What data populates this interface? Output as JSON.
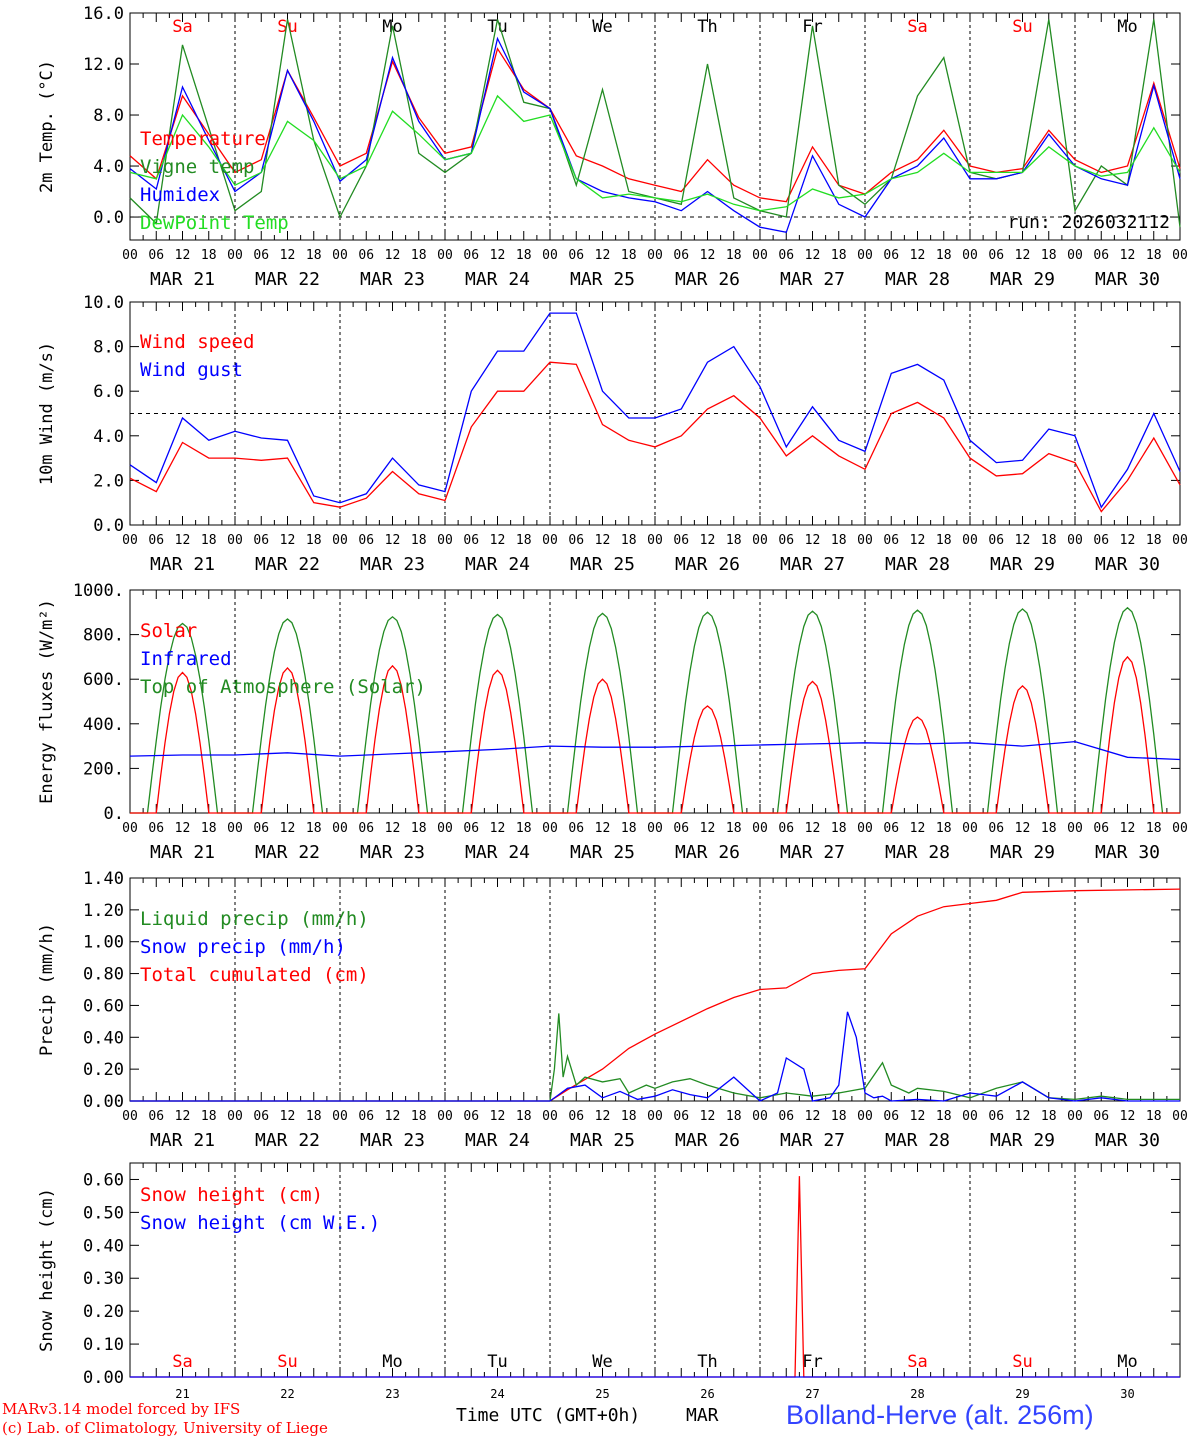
{
  "axis": {
    "hour_ticks": [
      "00",
      "06",
      "12",
      "18"
    ],
    "final_hour": "00",
    "dates": [
      "MAR 21",
      "MAR 22",
      "MAR 23",
      "MAR 24",
      "MAR 25",
      "MAR 26",
      "MAR 27",
      "MAR 28",
      "MAR 29",
      "MAR 30"
    ],
    "weekdays": [
      "Sa",
      "Su",
      "Mo",
      "Tu",
      "We",
      "Th",
      "Fr",
      "Sa",
      "Su",
      "Mo"
    ],
    "weekend_flags": [
      true,
      true,
      false,
      false,
      false,
      false,
      false,
      true,
      true,
      false
    ],
    "bottom_day_numbers": [
      "21",
      "22",
      "23",
      "24",
      "25",
      "26",
      "27",
      "28",
      "29",
      "30"
    ],
    "xlabel": "Time UTC (GMT+0h)",
    "month": "MAR"
  },
  "colors": {
    "red": "#ff0000",
    "green": "#228b22",
    "blue": "#0000ff",
    "lightgreen": "#22dd22",
    "weekend": "#ff0000",
    "weekday": "#000000"
  },
  "footer": {
    "model": "MARv3.14 model forced by IFS",
    "copyright": "(c) Lab. of Climatology, University of Liege",
    "station": "Bolland-Herve (alt. 256m)"
  },
  "chart_data": [
    {
      "type": "line",
      "title": "2m Temp.",
      "ylabel": "2m Temp. (°C)",
      "ylim": [
        -1.8,
        16.0
      ],
      "yticks": [
        "16.0",
        "12.0",
        "8.0",
        "4.0",
        "0.0"
      ],
      "ytick_values": [
        16,
        12,
        8,
        4,
        0
      ],
      "run_label": "run: 2026032112",
      "legend": [
        {
          "name": "Temperature",
          "color": "red"
        },
        {
          "name": "Vigne temp",
          "color": "green"
        },
        {
          "name": "Humidex",
          "color": "blue"
        },
        {
          "name": "DewPoint Temp",
          "color": "lightgreen"
        }
      ],
      "x_hours": [
        0,
        6,
        12,
        18,
        24,
        30,
        36,
        42,
        48,
        54,
        60,
        66,
        72,
        78,
        84,
        90,
        96,
        102,
        108,
        114,
        120,
        126,
        132,
        138,
        144,
        150,
        156,
        162,
        168,
        174,
        180,
        186,
        192,
        198,
        204,
        210,
        216,
        222,
        228,
        234,
        240
      ],
      "series": [
        {
          "name": "Temperature",
          "color": "red",
          "values": [
            4.8,
            3.0,
            9.5,
            6.5,
            3.5,
            4.5,
            11.5,
            7.8,
            4.0,
            5.0,
            12.2,
            7.8,
            5.0,
            5.5,
            13.2,
            10.0,
            8.5,
            4.8,
            4.0,
            3.0,
            2.5,
            2.0,
            4.5,
            2.5,
            1.5,
            1.2,
            5.5,
            2.5,
            1.8,
            3.5,
            4.5,
            6.8,
            4.0,
            3.5,
            3.8,
            6.8,
            4.5,
            3.5,
            4.0,
            10.5,
            3.8
          ]
        },
        {
          "name": "Vigne temp",
          "color": "green",
          "values": [
            1.5,
            -0.5,
            13.5,
            7.0,
            0.5,
            2.0,
            15.5,
            6.0,
            0.0,
            4.0,
            15.0,
            5.0,
            3.5,
            5.0,
            15.5,
            9.0,
            8.5,
            2.5,
            10.0,
            2.0,
            1.5,
            1.0,
            12.0,
            1.5,
            0.5,
            0.0,
            15.0,
            2.5,
            1.0,
            3.0,
            9.5,
            12.5,
            3.5,
            3.0,
            3.5,
            15.5,
            0.5,
            4.0,
            2.5,
            15.5,
            -0.8
          ]
        },
        {
          "name": "Humidex",
          "color": "blue",
          "values": [
            3.8,
            2.2,
            10.2,
            6.0,
            2.0,
            3.5,
            11.5,
            7.5,
            2.8,
            4.5,
            12.5,
            7.5,
            4.5,
            5.0,
            14.0,
            9.8,
            8.5,
            3.0,
            2.0,
            1.5,
            1.2,
            0.5,
            2.0,
            0.5,
            -0.8,
            -1.2,
            4.8,
            1.0,
            0.0,
            3.0,
            4.0,
            6.2,
            3.0,
            3.0,
            3.5,
            6.5,
            4.0,
            3.0,
            2.5,
            10.3,
            3.0
          ]
        },
        {
          "name": "DewPoint Temp",
          "color": "lightgreen",
          "values": [
            3.5,
            3.0,
            8.0,
            5.5,
            2.5,
            3.5,
            7.5,
            6.0,
            3.0,
            4.0,
            8.3,
            6.5,
            4.5,
            5.0,
            9.5,
            7.5,
            8.0,
            3.0,
            1.5,
            1.8,
            1.5,
            1.2,
            1.8,
            1.0,
            0.5,
            0.8,
            2.2,
            1.5,
            1.8,
            3.0,
            3.5,
            5.0,
            3.5,
            3.5,
            3.5,
            5.5,
            4.0,
            3.2,
            3.5,
            7.0,
            3.5
          ]
        }
      ]
    },
    {
      "type": "line",
      "title": "10m Wind",
      "ylabel": "10m Wind (m/s)",
      "ylim": [
        0,
        10
      ],
      "yticks": [
        "10.0",
        "8.0",
        "6.0",
        "4.0",
        "2.0",
        "0.0"
      ],
      "ytick_values": [
        10,
        8,
        6,
        4,
        2,
        0
      ],
      "reference_line": 5,
      "legend": [
        {
          "name": "Wind speed",
          "color": "red"
        },
        {
          "name": "Wind gust",
          "color": "blue"
        }
      ],
      "x_hours": [
        0,
        6,
        12,
        18,
        24,
        30,
        36,
        42,
        48,
        54,
        60,
        66,
        72,
        78,
        84,
        90,
        96,
        102,
        108,
        114,
        120,
        126,
        132,
        138,
        144,
        150,
        156,
        162,
        168,
        174,
        180,
        186,
        192,
        198,
        204,
        210,
        216,
        222,
        228,
        234,
        240
      ],
      "series": [
        {
          "name": "Wind speed",
          "color": "red",
          "values": [
            2.1,
            1.5,
            3.7,
            3.0,
            3.0,
            2.9,
            3.0,
            1.0,
            0.8,
            1.2,
            2.4,
            1.4,
            1.1,
            4.4,
            6.0,
            6.0,
            7.3,
            7.2,
            4.5,
            3.8,
            3.5,
            4.0,
            5.2,
            5.8,
            4.8,
            3.1,
            4.0,
            3.1,
            2.5,
            5.0,
            5.5,
            4.8,
            3.0,
            2.2,
            2.3,
            3.2,
            2.8,
            0.6,
            2.0,
            3.9,
            1.8
          ]
        },
        {
          "name": "Wind gust",
          "color": "blue",
          "values": [
            2.7,
            1.9,
            4.8,
            3.8,
            4.2,
            3.9,
            3.8,
            1.3,
            1.0,
            1.4,
            3.0,
            1.8,
            1.5,
            6.0,
            7.8,
            7.8,
            9.5,
            9.5,
            6.0,
            4.8,
            4.8,
            5.2,
            7.3,
            8.0,
            6.2,
            3.5,
            5.3,
            3.8,
            3.3,
            6.8,
            7.2,
            6.5,
            3.8,
            2.8,
            2.9,
            4.3,
            4.0,
            0.8,
            2.5,
            5.0,
            2.4
          ]
        }
      ]
    },
    {
      "type": "line",
      "title": "Energy fluxes",
      "ylabel": "Energy fluxes (W/m²)",
      "ylim": [
        0,
        1000
      ],
      "yticks": [
        "1000.",
        "800.",
        "600.",
        "400.",
        "200.",
        "0."
      ],
      "ytick_values": [
        1000,
        800,
        600,
        400,
        200,
        0
      ],
      "legend": [
        {
          "name": "Solar",
          "color": "red"
        },
        {
          "name": "Infrared",
          "color": "blue"
        },
        {
          "name": "Top of Atmosphere (Solar)",
          "color": "green"
        }
      ],
      "daily_peaks": {
        "Top of Atmosphere (Solar)": [
          850,
          870,
          880,
          890,
          895,
          900,
          905,
          910,
          915,
          920
        ],
        "Solar": [
          630,
          650,
          660,
          640,
          600,
          480,
          590,
          430,
          570,
          700
        ]
      },
      "infrared_hours": [
        0,
        12,
        24,
        36,
        48,
        60,
        72,
        84,
        96,
        108,
        120,
        132,
        144,
        156,
        168,
        180,
        192,
        204,
        216,
        228,
        240
      ],
      "infrared_values": [
        255,
        260,
        260,
        270,
        255,
        265,
        275,
        285,
        300,
        295,
        295,
        300,
        305,
        310,
        315,
        310,
        315,
        300,
        320,
        250,
        240
      ]
    },
    {
      "type": "line",
      "title": "Precip",
      "ylabel": "Precip (mm/h)",
      "ylim": [
        0,
        1.4
      ],
      "yticks": [
        "1.40",
        "1.20",
        "1.00",
        "0.80",
        "0.60",
        "0.40",
        "0.20",
        "0.00"
      ],
      "ytick_values": [
        1.4,
        1.2,
        1.0,
        0.8,
        0.6,
        0.4,
        0.2,
        0.0
      ],
      "legend": [
        {
          "name": "Liquid precip (mm/h)",
          "color": "green"
        },
        {
          "name": "Snow precip (mm/h)",
          "color": "blue"
        },
        {
          "name": "Total cumulated (cm)",
          "color": "red"
        }
      ],
      "series": [
        {
          "name": "Total cumulated (cm)",
          "color": "red",
          "x_hours": [
            0,
            96,
            100,
            108,
            114,
            120,
            132,
            138,
            144,
            150,
            156,
            162,
            168,
            174,
            180,
            186,
            192,
            198,
            204,
            216,
            240
          ],
          "values": [
            0,
            0,
            0.07,
            0.2,
            0.33,
            0.42,
            0.58,
            0.65,
            0.7,
            0.71,
            0.8,
            0.82,
            0.83,
            1.05,
            1.16,
            1.22,
            1.24,
            1.26,
            1.31,
            1.32,
            1.33
          ]
        },
        {
          "name": "Liquid precip (mm/h)",
          "color": "green",
          "x_hours": [
            0,
            96,
            97,
            98,
            99,
            100,
            102,
            104,
            108,
            112,
            114,
            118,
            120,
            124,
            128,
            132,
            138,
            144,
            150,
            156,
            162,
            168,
            172,
            174,
            178,
            180,
            186,
            192,
            198,
            204,
            210,
            216,
            222,
            228,
            240
          ],
          "values": [
            0,
            0,
            0.2,
            0.55,
            0.15,
            0.28,
            0.1,
            0.15,
            0.12,
            0.14,
            0.05,
            0.1,
            0.08,
            0.12,
            0.14,
            0.1,
            0.05,
            0.02,
            0.05,
            0.03,
            0.05,
            0.08,
            0.24,
            0.1,
            0.05,
            0.08,
            0.06,
            0.02,
            0.08,
            0.12,
            0.02,
            0.01,
            0.03,
            0.01,
            0.01
          ]
        },
        {
          "name": "Snow precip (mm/h)",
          "color": "blue",
          "x_hours": [
            0,
            96,
            98,
            100,
            104,
            108,
            112,
            116,
            120,
            124,
            128,
            132,
            138,
            144,
            148,
            150,
            154,
            156,
            160,
            162,
            164,
            166,
            168,
            170,
            172,
            174,
            180,
            186,
            192,
            198,
            204,
            210,
            216,
            222,
            228,
            240
          ],
          "values": [
            0,
            0,
            0.04,
            0.08,
            0.1,
            0.02,
            0.06,
            0.01,
            0.03,
            0.07,
            0.04,
            0.02,
            0.15,
            0.0,
            0.05,
            0.27,
            0.2,
            0.0,
            0.02,
            0.1,
            0.56,
            0.4,
            0.05,
            0.02,
            0.03,
            0.0,
            0.01,
            0.0,
            0.05,
            0.03,
            0.12,
            0.02,
            0.0,
            0.02,
            0.0,
            0.0
          ]
        }
      ]
    },
    {
      "type": "line",
      "title": "Snow height",
      "ylabel": "Snow height (cm)",
      "ylim": [
        0,
        0.65
      ],
      "yticks": [
        "0.60",
        "0.50",
        "0.40",
        "0.30",
        "0.20",
        "0.10",
        "0.00"
      ],
      "ytick_values": [
        0.6,
        0.5,
        0.4,
        0.3,
        0.2,
        0.1,
        0.0
      ],
      "legend": [
        {
          "name": "Snow height (cm)",
          "color": "red"
        },
        {
          "name": "Snow height (cm W.E.)",
          "color": "blue"
        }
      ],
      "series": [
        {
          "name": "Snow height (cm)",
          "color": "red",
          "x_hours": [
            0,
            150,
            152,
            153,
            154,
            240
          ],
          "values": [
            0,
            0,
            0,
            0.61,
            0,
            0
          ]
        },
        {
          "name": "Snow height (cm W.E.)",
          "color": "blue",
          "x_hours": [
            0,
            240
          ],
          "values": [
            0,
            0
          ]
        }
      ]
    }
  ]
}
